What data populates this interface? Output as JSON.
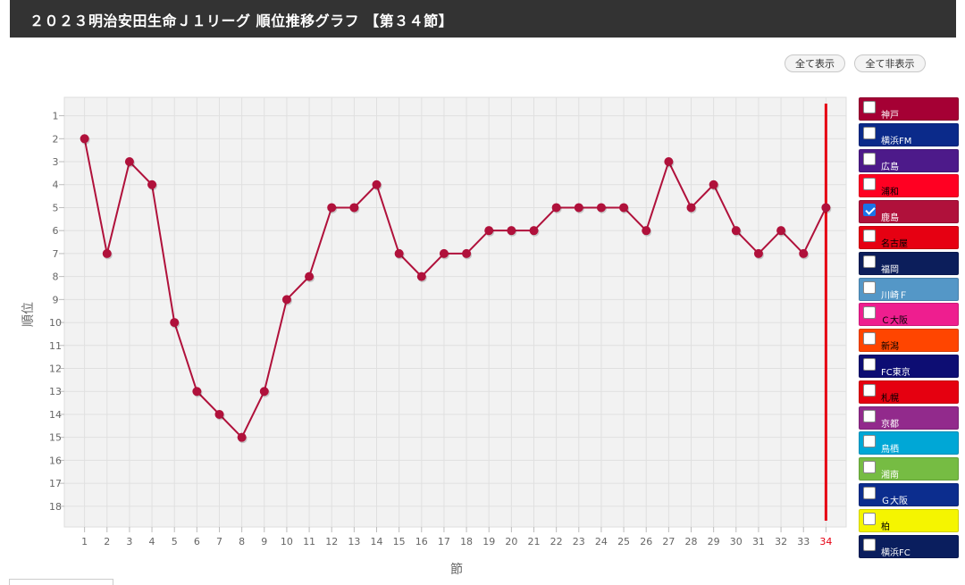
{
  "header": {
    "title": "２０２３明治安田生命Ｊ１リーグ 順位推移グラフ 【第３４節】"
  },
  "controls": {
    "show_all": "全て表示",
    "hide_all": "全て非表示"
  },
  "chart_data": {
    "type": "line",
    "xlabel": "節",
    "ylabel": "順位",
    "x": [
      1,
      2,
      3,
      4,
      5,
      6,
      7,
      8,
      9,
      10,
      11,
      12,
      13,
      14,
      15,
      16,
      17,
      18,
      19,
      20,
      21,
      22,
      23,
      24,
      25,
      26,
      27,
      28,
      29,
      30,
      31,
      32,
      33,
      34
    ],
    "yticks": [
      1,
      2,
      3,
      4,
      5,
      6,
      7,
      8,
      9,
      10,
      11,
      12,
      13,
      14,
      15,
      16,
      17,
      18
    ],
    "y_inverted": true,
    "ylim": [
      0.2,
      18.9
    ],
    "xlim": [
      0.1,
      34.9
    ],
    "grid": true,
    "current_round": 34,
    "current_round_color": "#e60012",
    "series": [
      {
        "name": "鹿島",
        "color": "#b0113b",
        "values": [
          2,
          7,
          3,
          4,
          10,
          13,
          14,
          15,
          13,
          9,
          8,
          5,
          5,
          4,
          7,
          8,
          7,
          7,
          6,
          6,
          6,
          5,
          5,
          5,
          5,
          6,
          3,
          5,
          4,
          6,
          7,
          6,
          7,
          5
        ]
      }
    ]
  },
  "legend": {
    "placement": "right",
    "items": [
      {
        "label": "神戸",
        "bg": "#a50034",
        "fg": "#ffffff",
        "checked": false
      },
      {
        "label": "横浜FM",
        "bg": "#0b2a8a",
        "fg": "#ffffff",
        "checked": false
      },
      {
        "label": "広島",
        "bg": "#4d1a8a",
        "fg": "#ffffff",
        "checked": false
      },
      {
        "label": "浦和",
        "bg": "#ff0022",
        "fg": "#000000",
        "checked": false
      },
      {
        "label": "鹿島",
        "bg": "#b0113b",
        "fg": "#ffffff",
        "checked": true
      },
      {
        "label": "名古屋",
        "bg": "#e60012",
        "fg": "#000000",
        "checked": false
      },
      {
        "label": "福岡",
        "bg": "#0c1e5b",
        "fg": "#ffffff",
        "checked": false
      },
      {
        "label": "川崎Ｆ",
        "bg": "#5497c7",
        "fg": "#ffffff",
        "checked": false
      },
      {
        "label": "Ｃ大阪",
        "bg": "#ee1e8f",
        "fg": "#000000",
        "checked": false
      },
      {
        "label": "新潟",
        "bg": "#ff4500",
        "fg": "#000000",
        "checked": false
      },
      {
        "label": "FC東京",
        "bg": "#0d0d73",
        "fg": "#ffffff",
        "checked": false
      },
      {
        "label": "札幌",
        "bg": "#e50010",
        "fg": "#000000",
        "checked": false
      },
      {
        "label": "京都",
        "bg": "#922a8c",
        "fg": "#ffffff",
        "checked": false
      },
      {
        "label": "鳥栖",
        "bg": "#00a7d6",
        "fg": "#ffffff",
        "checked": false
      },
      {
        "label": "湘南",
        "bg": "#76bc43",
        "fg": "#ffffff",
        "checked": false
      },
      {
        "label": "Ｇ大阪",
        "bg": "#0c2d8e",
        "fg": "#ffffff",
        "checked": false
      },
      {
        "label": "柏",
        "bg": "#f5f500",
        "fg": "#000000",
        "checked": false
      },
      {
        "label": "横浜FC",
        "bg": "#0a1e5e",
        "fg": "#ffffff",
        "checked": false
      }
    ]
  }
}
